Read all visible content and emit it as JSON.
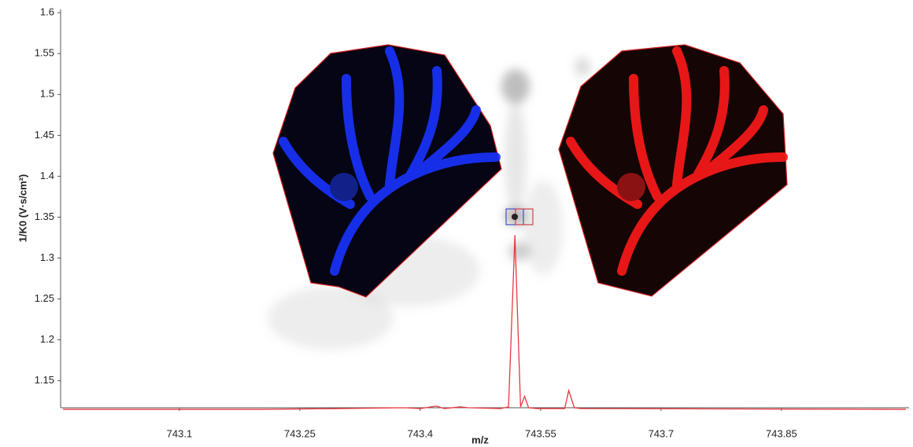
{
  "chart_data": {
    "type": "line",
    "x_label": "m/z",
    "y_label": "1/K0 (V·s/cm²)",
    "x": [
      742.955,
      743.2,
      743.3,
      743.38,
      743.4,
      743.42,
      743.43,
      743.45,
      743.46,
      743.5,
      743.51,
      743.518,
      743.525,
      743.53,
      743.535,
      743.545,
      743.58,
      743.585,
      743.592,
      743.6,
      744.005
    ],
    "values": [
      1.115,
      1.115,
      1.116,
      1.117,
      1.116,
      1.119,
      1.116,
      1.118,
      1.117,
      1.116,
      1.118,
      1.328,
      1.118,
      1.131,
      1.117,
      1.116,
      1.116,
      1.138,
      1.117,
      1.116,
      1.115
    ],
    "color": "#e8383d",
    "xlim": [
      742.952,
      744.009
    ],
    "ylim": [
      1.117,
      1.604
    ],
    "xticks": [
      743.1,
      743.25,
      743.4,
      743.55,
      743.7,
      743.85
    ],
    "yticks": [
      1.15,
      1.2,
      1.25,
      1.3,
      1.35,
      1.4,
      1.45,
      1.5,
      1.55,
      1.6
    ],
    "grid": false
  }
}
